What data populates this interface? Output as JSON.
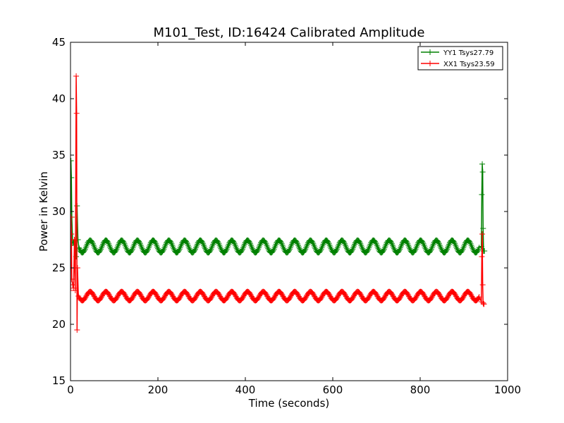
{
  "chart_data": {
    "type": "line",
    "title": "M101_Test, ID:16424 Calibrated Amplitude",
    "xlabel": "Time (seconds)",
    "ylabel": "Power in Kelvin",
    "xlim": [
      0,
      1000
    ],
    "ylim": [
      15,
      45
    ],
    "xticks": [
      0,
      200,
      400,
      600,
      800,
      1000
    ],
    "yticks": [
      15,
      20,
      25,
      30,
      35,
      40,
      45
    ],
    "grid": false,
    "legend_position": "top-right",
    "marker": "+",
    "series": [
      {
        "name": "YY1 Tsys27.79",
        "color": "#008000",
        "baseline": 26.9,
        "amplitude": 0.55,
        "period_s": 36,
        "phase_s": 0,
        "t_start": 20,
        "t_end": 935,
        "sample_step_s": 1.5,
        "edge_points": [
          [
            0,
            27.0
          ],
          [
            1,
            34.5
          ],
          [
            2,
            33.0
          ],
          [
            3,
            29.5
          ],
          [
            5,
            27.2
          ],
          [
            7,
            27.3
          ],
          [
            9,
            27.0
          ],
          [
            11,
            27.4
          ],
          [
            13,
            26.0
          ],
          [
            15,
            30.5
          ],
          [
            17,
            27.5
          ],
          [
            19,
            26.8
          ],
          [
            940,
            26.9
          ],
          [
            941,
            31.5
          ],
          [
            942,
            34.2
          ],
          [
            943,
            33.5
          ],
          [
            944,
            28.5
          ],
          [
            945,
            26.5
          ],
          [
            946,
            26.5
          ],
          [
            947,
            26.5
          ]
        ]
      },
      {
        "name": "XX1 Tsys23.59",
        "color": "#ff0000",
        "baseline": 22.5,
        "amplitude": 0.4,
        "period_s": 36,
        "phase_s": 0,
        "t_start": 20,
        "t_end": 935,
        "sample_step_s": 1.5,
        "edge_points": [
          [
            0,
            23.0
          ],
          [
            1,
            29.5
          ],
          [
            2,
            28.0
          ],
          [
            3,
            24.0
          ],
          [
            5,
            23.5
          ],
          [
            7,
            23.2
          ],
          [
            9,
            27.5
          ],
          [
            11,
            23.0
          ],
          [
            13,
            42.0
          ],
          [
            14,
            38.7
          ],
          [
            15,
            19.5
          ],
          [
            16,
            25.0
          ],
          [
            18,
            22.5
          ],
          [
            940,
            22.0
          ],
          [
            941,
            26.0
          ],
          [
            942,
            28.0
          ],
          [
            943,
            23.5
          ],
          [
            944,
            21.9
          ],
          [
            945,
            21.8
          ],
          [
            946,
            21.8
          ]
        ]
      }
    ]
  }
}
